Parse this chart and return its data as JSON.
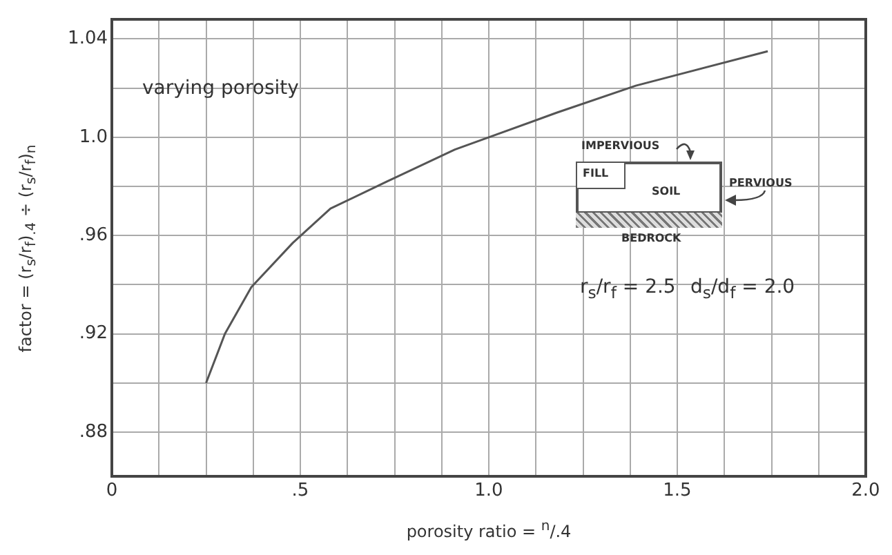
{
  "chart_data": {
    "type": "line",
    "xlabel": "porosity ratio = $^{n}$/.4",
    "ylabel": "factor = (r$_{s}$/r$_{f}$)$_{.4}$ ÷ (r$_{s}$/r$_{f}$)$_{n}$",
    "x": [
      0.25,
      0.3,
      0.37,
      0.48,
      0.58,
      0.73,
      0.91,
      1.0,
      1.18,
      1.39,
      1.74
    ],
    "series": [
      {
        "color": "#555555",
        "values": [
          0.9,
          0.92,
          0.939,
          0.957,
          0.971,
          0.982,
          0.995,
          1.0,
          1.01,
          1.021,
          1.035
        ]
      }
    ],
    "xlim": [
      0,
      2.0
    ],
    "ylim": [
      0.862,
      1.048
    ],
    "xticks": [
      0,
      {
        "value": 0.125,
        "label": null
      },
      {
        "value": 0.25,
        "label": null
      },
      {
        "value": 0.375,
        "label": null
      },
      {
        "value": 0.5,
        "label": ".5"
      },
      {
        "value": 0.625,
        "label": null
      },
      {
        "value": 0.75,
        "label": null
      },
      {
        "value": 0.875,
        "label": null
      },
      {
        "value": 1.0,
        "label": "1.0"
      },
      {
        "value": 1.125,
        "label": null
      },
      {
        "value": 1.25,
        "label": null
      },
      {
        "value": 1.375,
        "label": null
      },
      {
        "value": 1.5,
        "label": "1.5"
      },
      {
        "value": 1.625,
        "label": null
      },
      {
        "value": 1.75,
        "label": null
      },
      {
        "value": 1.875,
        "label": null
      },
      {
        "value": 2.0,
        "label": "2.0"
      }
    ],
    "yticks": [
      {
        "value": 0.88,
        "label": ".88"
      },
      {
        "value": 0.9,
        "label": null
      },
      {
        "value": 0.92,
        "label": ".92"
      },
      {
        "value": 0.94,
        "label": null
      },
      {
        "value": 0.96,
        "label": ".96"
      },
      {
        "value": 0.98,
        "label": null
      },
      {
        "value": 1.0,
        "label": "1.0"
      },
      {
        "value": 1.02,
        "label": null
      },
      {
        "value": 1.04,
        "label": "1.04"
      }
    ],
    "grid": true,
    "marker": "none",
    "line_style": "solid",
    "legend": false,
    "annotations": [
      "varying porosity",
      "IMPERVIOUS",
      "FILL",
      "SOIL",
      "PERVIOUS",
      "BEDROCK",
      "r$_{s}$/r$_{f}$ = 2.5",
      "d$_{s}$/d$_{f}$ = 2.0"
    ]
  }
}
